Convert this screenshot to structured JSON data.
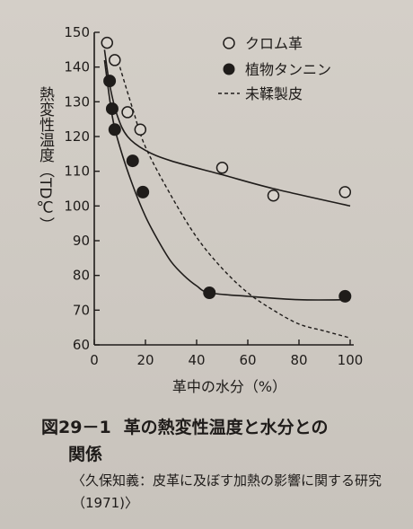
{
  "chart_data": {
    "type": "scatter",
    "ylabel": "熱変性温度（T_D ℃）",
    "ylabel_vertical": "熱変性温度（TD℃）",
    "xlabel": "革中の水分（%）",
    "xlim": [
      0,
      100
    ],
    "ylim": [
      60,
      150
    ],
    "x_ticks": [
      "0",
      "20",
      "40",
      "60",
      "80",
      "100"
    ],
    "y_ticks": [
      "60",
      "70",
      "80",
      "90",
      "100",
      "110",
      "120",
      "130",
      "140",
      "150"
    ],
    "legend_position": "top-right",
    "series": [
      {
        "name": "クロム革",
        "marker": "open-circle",
        "points": [
          [
            5,
            147
          ],
          [
            8,
            142
          ],
          [
            13,
            127
          ],
          [
            18,
            122
          ],
          [
            50,
            111
          ],
          [
            70,
            103
          ],
          [
            98,
            104
          ]
        ]
      },
      {
        "name": "植物タンニン",
        "marker": "filled-circle",
        "points": [
          [
            6,
            136
          ],
          [
            7,
            128
          ],
          [
            8,
            122
          ],
          [
            15,
            113
          ],
          [
            19,
            104
          ],
          [
            45,
            75
          ],
          [
            98,
            74
          ]
        ]
      },
      {
        "name": "未鞣製皮",
        "marker": "dashed-line",
        "points": [
          [
            10,
            140
          ],
          [
            15,
            128
          ],
          [
            20,
            117
          ],
          [
            30,
            103
          ],
          [
            40,
            91
          ],
          [
            50,
            82
          ],
          [
            60,
            75
          ],
          [
            70,
            70
          ],
          [
            80,
            66
          ],
          [
            90,
            64
          ],
          [
            100,
            62
          ]
        ]
      }
    ],
    "fit_curves": {
      "クロム革": [
        [
          4,
          145
        ],
        [
          6,
          135
        ],
        [
          9,
          126
        ],
        [
          13,
          120
        ],
        [
          20,
          116
        ],
        [
          30,
          113
        ],
        [
          50,
          109
        ],
        [
          70,
          105
        ],
        [
          100,
          100
        ]
      ],
      "植物タンニン": [
        [
          4,
          142
        ],
        [
          7,
          126
        ],
        [
          10,
          117
        ],
        [
          15,
          106
        ],
        [
          20,
          97
        ],
        [
          25,
          90
        ],
        [
          30,
          84
        ],
        [
          35,
          80
        ],
        [
          40,
          77
        ],
        [
          45,
          75
        ],
        [
          60,
          74
        ],
        [
          80,
          73
        ],
        [
          100,
          73
        ]
      ]
    }
  },
  "caption": {
    "number": "図29－1",
    "title_line1": "革の熱変性温度と水分との",
    "title_line2": "関係",
    "citation": "〈久保知義：皮革に及ぼす加熱の影響に関する研究（1971)〉"
  },
  "colors": {
    "ink": "#1f1c1a",
    "paper": "#cfcac3"
  }
}
